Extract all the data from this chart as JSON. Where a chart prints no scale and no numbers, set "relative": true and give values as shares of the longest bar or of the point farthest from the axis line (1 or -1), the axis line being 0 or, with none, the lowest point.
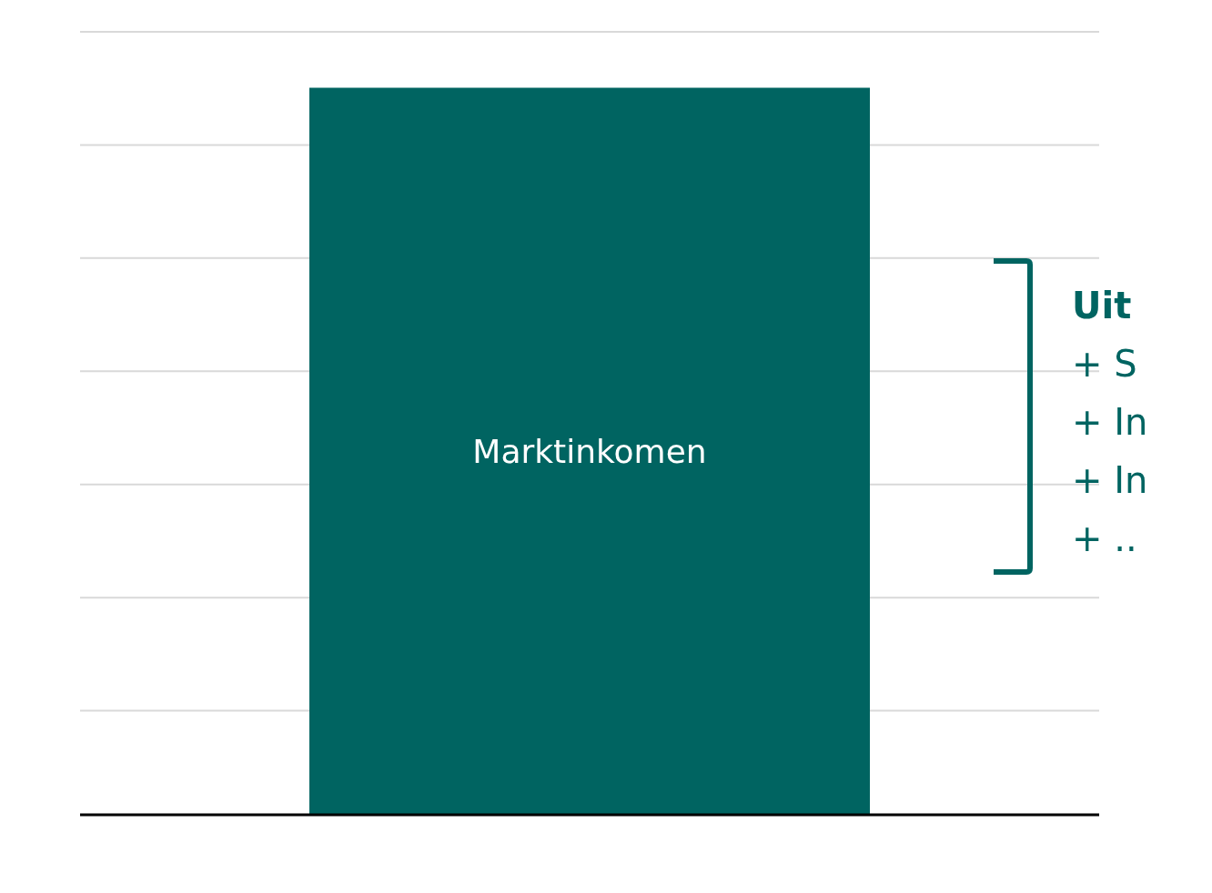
{
  "chart_data": {
    "type": "bar",
    "categories": [
      null
    ],
    "relative": true,
    "grid": "y",
    "series": [
      {
        "name": "Marktinkomen",
        "color": "#006461",
        "values": [
          1
        ]
      }
    ],
    "annotations": [
      "Uit",
      "+ S",
      "+ In",
      "+ In",
      "+ .."
    ]
  }
}
